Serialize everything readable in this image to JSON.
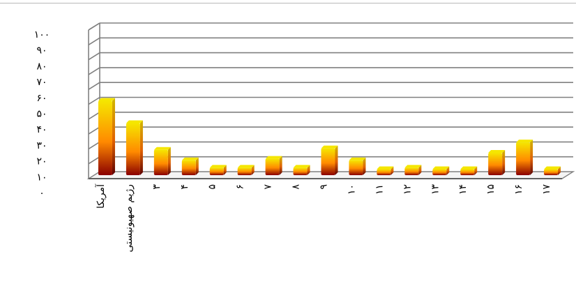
{
  "chart_data": {
    "type": "bar",
    "style": "3d-cylinder",
    "categories": [
      "آمریکا",
      "رژیم صهیونیستی",
      "۳",
      "۴",
      "۵",
      "۶",
      "۷",
      "۸",
      "۹",
      "۱۰",
      "۱۱",
      "۱۲",
      "۱۳",
      "۱۴",
      "۱۵",
      "۱۶",
      "۱۷"
    ],
    "values": [
      50,
      35,
      17,
      10,
      5,
      5,
      11,
      5,
      18,
      10,
      4,
      5,
      4,
      4,
      15,
      22,
      4
    ],
    "yticks": [
      "۰",
      "۱۰",
      "۲۰",
      "۳۰",
      "۴۰",
      "۵۰",
      "۶۰",
      "۷۰",
      "۸۰",
      "۹۰",
      "۱۰۰"
    ],
    "ylim": [
      0,
      100
    ],
    "title": "",
    "xlabel": "",
    "ylabel": "",
    "grid": true,
    "legend": "none",
    "colors": {
      "top": "#f5e600",
      "mid": "#ff8a00",
      "bottom": "#8a0000",
      "grid": "#808080",
      "floor": "#606060"
    }
  }
}
